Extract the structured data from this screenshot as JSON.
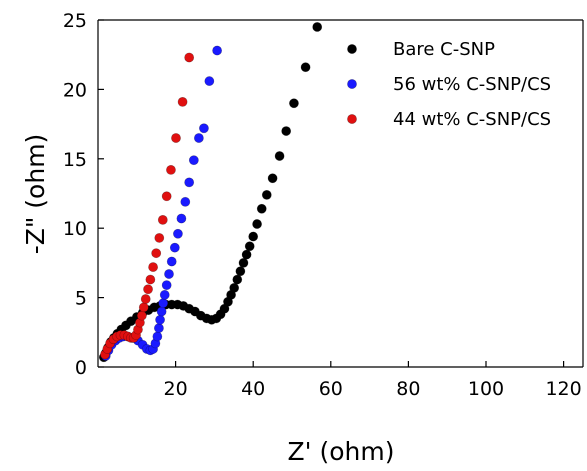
{
  "chart_data": {
    "type": "scatter",
    "xlabel": "Z' (ohm)",
    "ylabel": "-Z\" (ohm)",
    "xlim": [
      0,
      125
    ],
    "ylim": [
      0,
      25
    ],
    "xticks": [
      20,
      40,
      60,
      80,
      100,
      120
    ],
    "yticks": [
      0,
      5,
      10,
      15,
      20,
      25
    ],
    "legend_position": "top-right",
    "series": [
      {
        "name": "Bare C-SNP",
        "color": "#000000",
        "x": [
          1.5,
          2.0,
          2.6,
          3.3,
          4.1,
          5.0,
          6.0,
          7.2,
          8.5,
          10.0,
          11.5,
          13.0,
          14.5,
          16.0,
          17.5,
          19.0,
          20.5,
          22.0,
          23.5,
          25.0,
          26.5,
          28.0,
          29.3,
          30.5,
          31.6,
          32.6,
          33.5,
          34.3,
          35.1,
          35.9,
          36.7,
          37.5,
          38.3,
          39.1,
          40.0,
          41.0,
          42.2,
          43.5,
          45.0,
          46.8,
          48.5,
          50.5,
          53.5,
          56.5
        ],
        "y": [
          0.7,
          1.0,
          1.4,
          1.8,
          2.1,
          2.4,
          2.7,
          3.0,
          3.3,
          3.6,
          3.9,
          4.1,
          4.3,
          4.4,
          4.5,
          4.5,
          4.5,
          4.4,
          4.2,
          4.0,
          3.7,
          3.5,
          3.4,
          3.5,
          3.8,
          4.2,
          4.7,
          5.2,
          5.7,
          6.3,
          6.9,
          7.5,
          8.1,
          8.7,
          9.4,
          10.3,
          11.4,
          12.4,
          13.6,
          15.2,
          17.0,
          19.0,
          21.6,
          24.5
        ]
      },
      {
        "name": "56 wt% C-SNP/CS",
        "color": "#1a1aff",
        "x": [
          2.0,
          2.7,
          3.5,
          4.5,
          5.5,
          6.5,
          7.7,
          9.0,
          10.3,
          11.5,
          12.6,
          13.5,
          14.2,
          14.8,
          15.3,
          15.7,
          16.0,
          16.4,
          16.8,
          17.2,
          17.7,
          18.3,
          19.0,
          19.8,
          20.6,
          21.5,
          22.5,
          23.5,
          24.7,
          26.0,
          27.3,
          28.7,
          30.7
        ],
        "y": [
          0.8,
          1.2,
          1.6,
          1.9,
          2.1,
          2.2,
          2.2,
          2.1,
          1.9,
          1.6,
          1.3,
          1.2,
          1.3,
          1.7,
          2.2,
          2.8,
          3.4,
          4.0,
          4.6,
          5.2,
          5.9,
          6.7,
          7.6,
          8.6,
          9.6,
          10.7,
          11.9,
          13.3,
          14.9,
          16.5,
          17.2,
          20.6,
          22.8
        ]
      },
      {
        "name": "44 wt% C-SNP/CS",
        "color": "#e01010",
        "x": [
          1.8,
          2.4,
          3.1,
          4.0,
          4.9,
          5.8,
          6.8,
          7.7,
          8.5,
          9.2,
          9.8,
          10.3,
          10.8,
          11.3,
          11.8,
          12.3,
          12.9,
          13.5,
          14.2,
          15.0,
          15.8,
          16.7,
          17.7,
          18.8,
          20.1,
          21.8,
          23.5
        ],
        "y": [
          0.9,
          1.3,
          1.7,
          2.0,
          2.2,
          2.3,
          2.3,
          2.2,
          2.1,
          2.1,
          2.3,
          2.7,
          3.2,
          3.7,
          4.3,
          4.9,
          5.6,
          6.3,
          7.2,
          8.2,
          9.3,
          10.6,
          12.3,
          14.2,
          16.5,
          19.1,
          22.3
        ]
      }
    ]
  }
}
